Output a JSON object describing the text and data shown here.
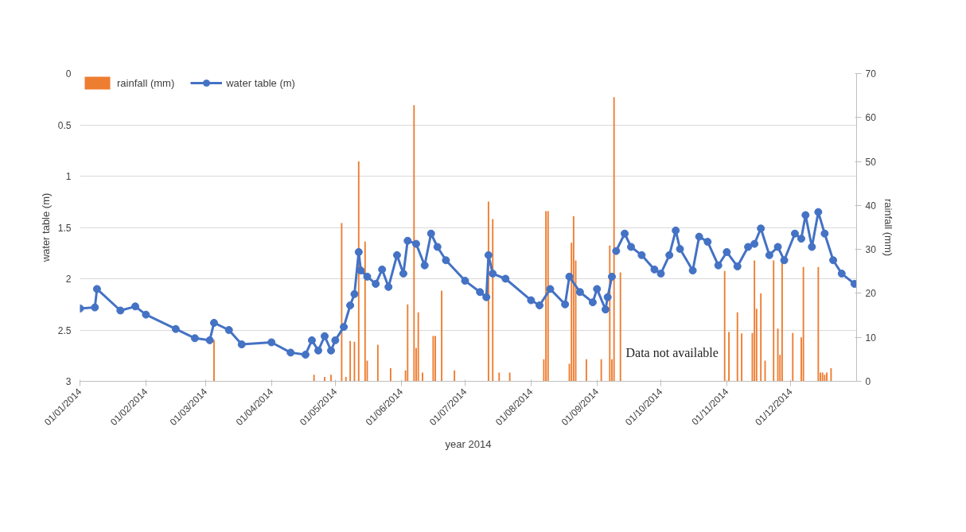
{
  "chart_data": {
    "type": "line",
    "xlabel": "year 2014",
    "ylabel": "water table (m)",
    "y2label": "rainfall (mm)",
    "xlim": [
      "2014-01-01",
      "2015-01-01"
    ],
    "xticks": [
      {
        "value": "2014-01-01",
        "label": "01/01/2014"
      },
      {
        "value": "2014-02-01",
        "label": "01/02/2014"
      },
      {
        "value": "2014-03-01",
        "label": "01/03/2014"
      },
      {
        "value": "2014-04-01",
        "label": "01/04/2014"
      },
      {
        "value": "2014-05-01",
        "label": "01/05/2014"
      },
      {
        "value": "2014-06-01",
        "label": "01/06/2014"
      },
      {
        "value": "2014-07-01",
        "label": "01/07/2014"
      },
      {
        "value": "2014-08-01",
        "label": "01/08/2014"
      },
      {
        "value": "2014-09-01",
        "label": "01/09/2014"
      },
      {
        "value": "2014-10-01",
        "label": "01/10/2014"
      },
      {
        "value": "2014-11-01",
        "label": "01/11/2014"
      },
      {
        "value": "2014-12-01",
        "label": "01/12/2014"
      }
    ],
    "ylim": [
      3,
      0
    ],
    "yticks": [
      0,
      0.5,
      1,
      1.5,
      2,
      2.5,
      3
    ],
    "y2lim": [
      0,
      70
    ],
    "y2ticks": [
      0,
      10,
      20,
      30,
      40,
      50,
      60,
      70
    ],
    "grid": "y",
    "legend": "top left",
    "marker": "circle",
    "annotations": [
      "Data not available"
    ],
    "series": [
      {
        "name": "rainfall (mm)",
        "type": "bar",
        "axis": "y2",
        "color": "#ed7d31",
        "x": [
          "2014-03-05",
          "2014-04-21",
          "2014-04-26",
          "2014-04-29",
          "2014-05-04",
          "2014-05-06",
          "2014-05-08",
          "2014-05-10",
          "2014-05-12",
          "2014-05-15",
          "2014-05-16",
          "2014-05-21",
          "2014-05-27",
          "2014-06-03",
          "2014-06-04",
          "2014-06-07",
          "2014-06-08",
          "2014-06-09",
          "2014-06-11",
          "2014-06-16",
          "2014-06-17",
          "2014-06-20",
          "2014-06-26",
          "2014-07-12",
          "2014-07-14",
          "2014-07-17",
          "2014-07-22",
          "2014-08-07",
          "2014-08-08",
          "2014-08-09",
          "2014-08-19",
          "2014-08-20",
          "2014-08-21",
          "2014-08-22",
          "2014-08-27",
          "2014-09-03",
          "2014-09-07",
          "2014-09-08",
          "2014-09-09",
          "2014-09-12",
          "2014-10-31",
          "2014-11-02",
          "2014-11-06",
          "2014-11-08",
          "2014-11-13",
          "2014-11-14",
          "2014-11-15",
          "2014-11-17",
          "2014-11-19",
          "2014-11-23",
          "2014-11-25",
          "2014-11-26",
          "2014-11-27",
          "2014-12-02",
          "2014-12-06",
          "2014-12-07",
          "2014-12-14",
          "2014-12-15",
          "2014-12-16",
          "2014-12-17",
          "2014-12-18",
          "2014-12-20"
        ],
        "values": [
          9.4,
          1.5,
          1,
          1.5,
          36,
          1,
          9.2,
          9,
          50,
          31.8,
          4.7,
          8.3,
          3,
          2.5,
          17.5,
          62.8,
          7.6,
          15.7,
          2,
          10.3,
          10.3,
          20.6,
          2.5,
          40.9,
          36.9,
          2,
          2,
          5,
          38.7,
          38.7,
          4,
          31.5,
          37.6,
          27.5,
          5,
          5,
          30.9,
          5,
          64.6,
          24.8,
          25.1,
          11.2,
          15.7,
          10.9,
          11,
          27.5,
          16.5,
          20,
          4.7,
          27.5,
          12,
          6,
          27.3,
          11,
          10,
          26,
          26,
          2,
          2,
          1.5,
          2,
          3
        ]
      },
      {
        "name": "water table (m)",
        "color": "#4472c4",
        "x": [
          "2014-01-01",
          "2014-01-08",
          "2014-01-09",
          "2014-01-20",
          "2014-01-27",
          "2014-02-01",
          "2014-02-15",
          "2014-02-24",
          "2014-03-03",
          "2014-03-05",
          "2014-03-12",
          "2014-03-18",
          "2014-04-01",
          "2014-04-10",
          "2014-04-17",
          "2014-04-20",
          "2014-04-23",
          "2014-04-26",
          "2014-04-29",
          "2014-05-01",
          "2014-05-05",
          "2014-05-08",
          "2014-05-10",
          "2014-05-12",
          "2014-05-13",
          "2014-05-16",
          "2014-05-20",
          "2014-05-23",
          "2014-05-26",
          "2014-05-30",
          "2014-06-02",
          "2014-06-04",
          "2014-06-08",
          "2014-06-12",
          "2014-06-15",
          "2014-06-18",
          "2014-06-22",
          "2014-07-01",
          "2014-07-08",
          "2014-07-11",
          "2014-07-12",
          "2014-07-14",
          "2014-07-20",
          "2014-08-01",
          "2014-08-05",
          "2014-08-10",
          "2014-08-17",
          "2014-08-19",
          "2014-08-24",
          "2014-08-30",
          "2014-09-01",
          "2014-09-05",
          "2014-09-06",
          "2014-09-08",
          "2014-09-09",
          "2014-09-10",
          "2014-09-14",
          "2014-09-17",
          "2014-09-22",
          "2014-09-28",
          "2014-10-01",
          "2014-10-05",
          "2014-10-08",
          "2014-10-10",
          "2014-10-16",
          "2014-10-19",
          "2014-10-23",
          "2014-10-28",
          "2014-11-01",
          "2014-11-06",
          "2014-11-11",
          "2014-11-14",
          "2014-11-17",
          "2014-11-21",
          "2014-11-25",
          "2014-11-28",
          "2014-12-03",
          "2014-12-06",
          "2014-12-08",
          "2014-12-11",
          "2014-12-14",
          "2014-12-17",
          "2014-12-21",
          "2014-12-25",
          "2014-12-31"
        ],
        "values": [
          2.29,
          2.28,
          2.1,
          2.31,
          2.27,
          2.35,
          2.49,
          2.58,
          2.6,
          2.43,
          2.5,
          2.64,
          2.62,
          2.72,
          2.74,
          2.6,
          2.7,
          2.56,
          2.7,
          2.6,
          2.47,
          2.26,
          2.15,
          1.74,
          1.92,
          1.98,
          2.05,
          1.91,
          2.08,
          1.77,
          1.95,
          1.63,
          1.66,
          1.87,
          1.56,
          1.69,
          1.82,
          2.02,
          2.13,
          2.18,
          1.77,
          1.95,
          2.0,
          2.21,
          2.26,
          2.1,
          2.25,
          1.98,
          2.13,
          2.23,
          2.1,
          2.3,
          2.18,
          1.98,
          null,
          1.73,
          1.56,
          1.69,
          1.77,
          1.91,
          1.95,
          1.77,
          1.53,
          1.71,
          1.92,
          1.59,
          1.64,
          1.87,
          1.74,
          1.88,
          1.69,
          1.66,
          1.51,
          1.77,
          1.69,
          1.82,
          1.56,
          1.61,
          1.38,
          1.69,
          1.35,
          1.56,
          1.82,
          1.95,
          2.05
        ]
      }
    ]
  }
}
